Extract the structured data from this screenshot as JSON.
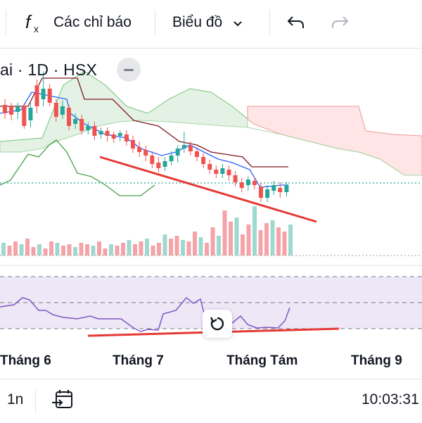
{
  "toolbar": {
    "indicator_icon": "function-fx-icon",
    "indicators_label": "Các chỉ báo",
    "chart_type_label": "Biểu đồ",
    "chart_type_icon": "chevron-down-icon",
    "undo_icon": "undo-arrow-icon",
    "redo_icon": "redo-arrow-icon"
  },
  "chart": {
    "symbol_label": "ai · 1D · HSX",
    "collapse_icon": "minus-icon",
    "reset_icon": "reset-rotate-icon",
    "x_labels": [
      "Tháng 6",
      "Tháng 7",
      "Tháng Tám",
      "Tháng 9"
    ]
  },
  "bottom": {
    "interval_label": "1n",
    "date_range_icon": "calendar-goto-icon",
    "clock": "10:03:31"
  },
  "colors": {
    "up": "#26a69a",
    "down": "#ef5350",
    "tenkan": "#2962ff",
    "kijun": "#801922",
    "lagging": "#43a047",
    "cloud_bull": "#c8e6c9",
    "cloud_bear": "#ffcdd2",
    "rsi_line": "#7e57c2",
    "rsi_band": "#ede7f6",
    "trendline": "#e53935"
  }
}
